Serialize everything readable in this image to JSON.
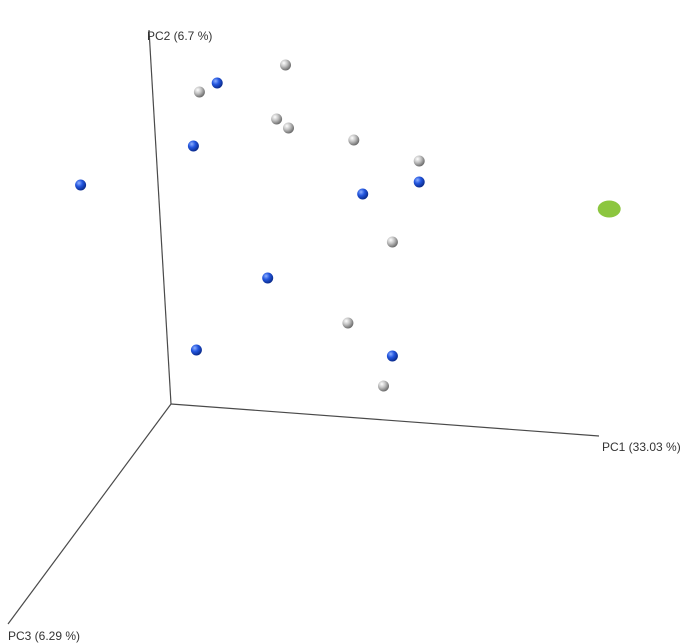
{
  "chart_data": {
    "type": "scatter",
    "projection": "3d",
    "title": "",
    "axes": {
      "x": "PC1 (33.03 %)",
      "y": "PC2 (6.7 %)",
      "z": "PC3 (6.29 %)"
    },
    "legend": "none",
    "grid": false,
    "background": "#ffffff",
    "series": [
      {
        "color": "#1f4fd6",
        "marker": "sphere",
        "points": [
          {
            "pc1": -0.4,
            "pc2": 0.69,
            "pc3": 0.0
          },
          {
            "pc1": -0.48,
            "pc2": 0.48,
            "pc3": 0.0
          },
          {
            "pc1": -0.86,
            "pc2": 0.35,
            "pc3": 0.0
          },
          {
            "pc1": 0.09,
            "pc2": 0.32,
            "pc3": 0.0
          },
          {
            "pc1": 0.28,
            "pc2": 0.36,
            "pc3": 0.0
          },
          {
            "pc1": -0.23,
            "pc2": 0.04,
            "pc3": 0.0
          },
          {
            "pc1": -0.47,
            "pc2": -0.2,
            "pc3": 0.0
          },
          {
            "pc1": 0.19,
            "pc2": -0.22,
            "pc3": 0.0
          }
        ]
      },
      {
        "color": "#b8b8b8",
        "marker": "sphere",
        "points": [
          {
            "pc1": -0.46,
            "pc2": 0.66,
            "pc3": 0.0
          },
          {
            "pc1": -0.17,
            "pc2": 0.75,
            "pc3": 0.0
          },
          {
            "pc1": -0.2,
            "pc2": 0.57,
            "pc3": 0.0
          },
          {
            "pc1": -0.16,
            "pc2": 0.54,
            "pc3": 0.0
          },
          {
            "pc1": 0.06,
            "pc2": 0.5,
            "pc3": 0.0
          },
          {
            "pc1": 0.28,
            "pc2": 0.43,
            "pc3": 0.0
          },
          {
            "pc1": 0.19,
            "pc2": 0.16,
            "pc3": 0.0
          },
          {
            "pc1": 0.04,
            "pc2": -0.11,
            "pc3": 0.0
          },
          {
            "pc1": 0.16,
            "pc2": -0.32,
            "pc3": 0.0
          }
        ]
      },
      {
        "color": "#8cc63f",
        "marker": "disc",
        "points": [
          {
            "pc1": 0.92,
            "pc2": 0.27,
            "pc3": 0.0
          }
        ]
      }
    ]
  }
}
